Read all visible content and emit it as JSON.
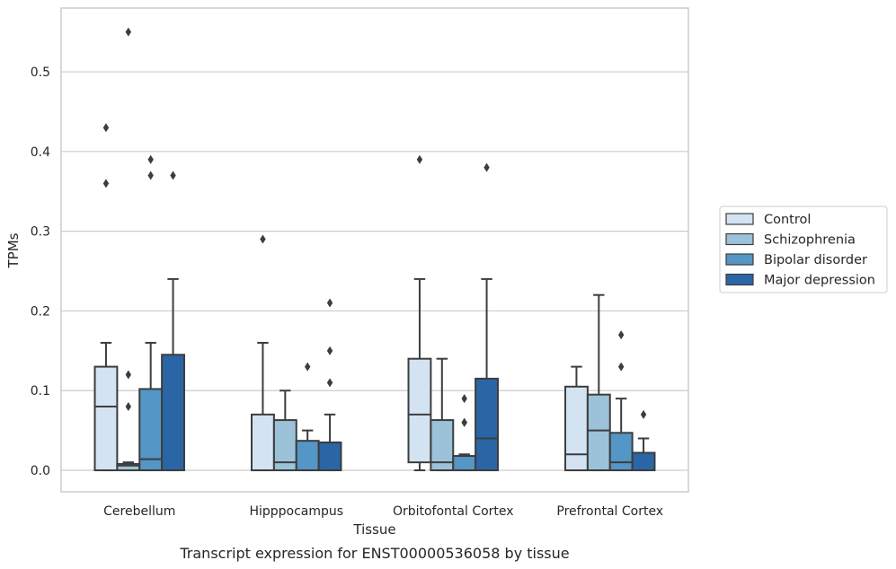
{
  "chart_data": {
    "type": "box",
    "xlabel": "Tissue",
    "ylabel": "TPMs",
    "caption": "Transcript expression for ENST00000536058 by tissue",
    "ylim": [
      -0.027,
      0.58
    ],
    "yticks": [
      0.0,
      0.1,
      0.2,
      0.3,
      0.4,
      0.5
    ],
    "ytick_labels": [
      "0.0",
      "0.1",
      "0.2",
      "0.3",
      "0.4",
      "0.5"
    ],
    "grid": "horizontal",
    "legend_position": "right",
    "categories": [
      "Cerebellum",
      "Hipppocampus",
      "Orbitofontal Cortex",
      "Prefrontal Cortex"
    ],
    "series": [
      {
        "name": "Control",
        "color": "#d4e3f2",
        "boxes": [
          {
            "q1": 0.0,
            "median": 0.08,
            "q3": 0.13,
            "whislo": 0.0,
            "whishi": 0.16,
            "fliers": [
              0.36,
              0.43
            ]
          },
          {
            "q1": 0.0,
            "median": 0.0,
            "q3": 0.07,
            "whislo": 0.0,
            "whishi": 0.16,
            "fliers": [
              0.29
            ]
          },
          {
            "q1": 0.01,
            "median": 0.07,
            "q3": 0.14,
            "whislo": 0.0,
            "whishi": 0.24,
            "fliers": [
              0.39
            ]
          },
          {
            "q1": 0.0,
            "median": 0.02,
            "q3": 0.105,
            "whislo": 0.0,
            "whishi": 0.13,
            "fliers": []
          }
        ]
      },
      {
        "name": "Schizophrenia",
        "color": "#9bc2d9",
        "boxes": [
          {
            "q1": 0.0,
            "median": 0.006,
            "q3": 0.008,
            "whislo": 0.0,
            "whishi": 0.01,
            "fliers": [
              0.08,
              0.12,
              0.55
            ]
          },
          {
            "q1": 0.0,
            "median": 0.01,
            "q3": 0.063,
            "whislo": 0.0,
            "whishi": 0.1,
            "fliers": []
          },
          {
            "q1": 0.0,
            "median": 0.01,
            "q3": 0.063,
            "whislo": 0.0,
            "whishi": 0.14,
            "fliers": []
          },
          {
            "q1": 0.0,
            "median": 0.05,
            "q3": 0.095,
            "whislo": 0.0,
            "whishi": 0.22,
            "fliers": []
          }
        ]
      },
      {
        "name": "Bipolar disorder",
        "color": "#5496c5",
        "boxes": [
          {
            "q1": 0.0,
            "median": 0.014,
            "q3": 0.102,
            "whislo": 0.0,
            "whishi": 0.16,
            "fliers": [
              0.37,
              0.39
            ]
          },
          {
            "q1": 0.0,
            "median": 0.0,
            "q3": 0.037,
            "whislo": 0.0,
            "whishi": 0.05,
            "fliers": [
              0.13
            ]
          },
          {
            "q1": 0.0,
            "median": 0.0,
            "q3": 0.018,
            "whislo": 0.0,
            "whishi": 0.02,
            "fliers": [
              0.06,
              0.06,
              0.09
            ]
          },
          {
            "q1": 0.0,
            "median": 0.01,
            "q3": 0.047,
            "whislo": 0.0,
            "whishi": 0.09,
            "fliers": [
              0.13,
              0.17
            ]
          }
        ]
      },
      {
        "name": "Major depression",
        "color": "#2a66a6",
        "boxes": [
          {
            "q1": 0.0,
            "median": 0.0,
            "q3": 0.145,
            "whislo": 0.0,
            "whishi": 0.24,
            "fliers": [
              0.37
            ]
          },
          {
            "q1": 0.0,
            "median": 0.0,
            "q3": 0.035,
            "whislo": 0.0,
            "whishi": 0.07,
            "fliers": [
              0.11,
              0.15,
              0.21
            ]
          },
          {
            "q1": 0.0,
            "median": 0.04,
            "q3": 0.115,
            "whislo": 0.0,
            "whishi": 0.24,
            "fliers": [
              0.38
            ]
          },
          {
            "q1": 0.0,
            "median": 0.0,
            "q3": 0.022,
            "whislo": 0.0,
            "whishi": 0.04,
            "fliers": [
              0.07
            ]
          }
        ]
      }
    ]
  }
}
